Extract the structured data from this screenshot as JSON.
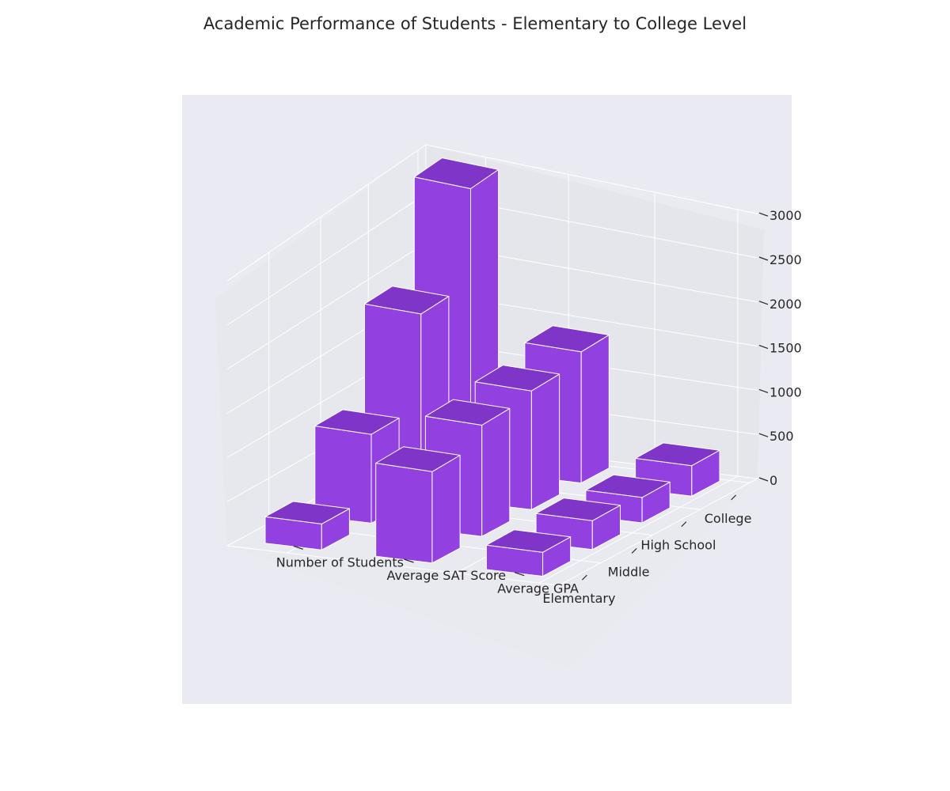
{
  "chart_data": {
    "type": "bar3d",
    "title": "Academic Performance of Students - Elementary to College Level",
    "categories": [
      "Elementary",
      "Middle",
      "High School",
      "College"
    ],
    "series_labels": [
      "Average GPA",
      "Average SAT Score",
      "Number of Students"
    ],
    "z_ticks": [
      "0",
      "500",
      "1000",
      "1500",
      "2000",
      "2500",
      "3000"
    ],
    "z_range": [
      0,
      3000
    ],
    "grid": true,
    "bar_heights": [
      {
        "category": "Elementary",
        "values": [
          300,
          1100,
          300
        ]
      },
      {
        "category": "Middle",
        "values": [
          350,
          1300,
          1000
        ]
      },
      {
        "category": "High School",
        "values": [
          300,
          1350,
          2000
        ]
      },
      {
        "category": "College",
        "values": [
          350,
          1450,
          3000
        ]
      }
    ],
    "colors": {
      "bar_side": "#9340e0",
      "bar_top": "#7e35c8",
      "bar_edge": "#ffffff",
      "axes_background": "#eaeaf2",
      "pane_back": "#e5e5ec",
      "pane_floor": "#e9e9f0",
      "text": "#262626"
    }
  }
}
